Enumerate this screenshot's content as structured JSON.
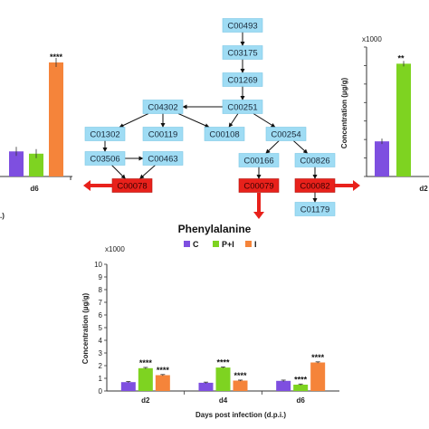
{
  "colors": {
    "node_fill": "#9fdcf4",
    "node_stroke": "#7cc6e4",
    "highlight_fill": "#e8211b",
    "arrow_red": "#e8211b",
    "series_C": "#7e4fe0",
    "series_PI": "#7ed321",
    "series_I": "#f5843a"
  },
  "pathway": {
    "nodes": [
      {
        "id": "C00493"
      },
      {
        "id": "C03175"
      },
      {
        "id": "C01269"
      },
      {
        "id": "C00251"
      },
      {
        "id": "C04302"
      },
      {
        "id": "C01302"
      },
      {
        "id": "C00119"
      },
      {
        "id": "C00108"
      },
      {
        "id": "C00254"
      },
      {
        "id": "C03506"
      },
      {
        "id": "C00463"
      },
      {
        "id": "C00078",
        "highlight": true
      },
      {
        "id": "C00166"
      },
      {
        "id": "C00826"
      },
      {
        "id": "C00079",
        "highlight": true
      },
      {
        "id": "C00082",
        "highlight": true
      },
      {
        "id": "C01179"
      }
    ],
    "center_label": "Phenylalanine"
  },
  "chart_data": [
    {
      "type": "bar",
      "xlabel": "Days post infection (d.p.i.)",
      "ylabel": "Concentration (µg/g)",
      "multiplier": "x1000",
      "ylim": [
        0,
        10
      ],
      "yticks": [
        "0",
        "1",
        "2",
        "3",
        "4",
        "5",
        "6",
        "7",
        "8",
        "9",
        "10"
      ],
      "categories": [
        "d2",
        "d4",
        "d6"
      ],
      "legend": [
        "C",
        "P+I",
        "I"
      ],
      "legend_position": "top",
      "series": [
        {
          "name": "C",
          "values": [
            0.7,
            0.65,
            0.8
          ],
          "errors": [
            0.05,
            0.05,
            0.06
          ],
          "stars": [
            "",
            "",
            ""
          ]
        },
        {
          "name": "P+I",
          "values": [
            1.8,
            1.85,
            0.5
          ],
          "errors": [
            0.06,
            0.05,
            0.05
          ],
          "stars": [
            "****",
            "****",
            "****"
          ]
        },
        {
          "name": "I",
          "values": [
            1.25,
            0.82,
            2.25
          ],
          "errors": [
            0.05,
            0.04,
            0.05
          ],
          "stars": [
            "****",
            "****",
            "****"
          ]
        }
      ]
    },
    {
      "type": "bar",
      "panel": "left-partial",
      "categories": [
        "d6"
      ],
      "series": [
        {
          "name": "C",
          "values": [
            0.22
          ],
          "stars": [
            ""
          ]
        },
        {
          "name": "P+I",
          "values": [
            0.2
          ],
          "stars": [
            ""
          ]
        },
        {
          "name": "I",
          "values": [
            1.0
          ],
          "stars": [
            "****"
          ]
        }
      ],
      "tail_label": ".)"
    },
    {
      "type": "bar",
      "panel": "right-partial",
      "multiplier": "x1000",
      "ylabel": "Concentration (µg/g)",
      "categories": [
        "d2"
      ],
      "series": [
        {
          "name": "C",
          "values": [
            0.19
          ]
        },
        {
          "name": "P+I",
          "values": [
            0.61
          ],
          "stars": [
            "**"
          ]
        }
      ]
    }
  ]
}
